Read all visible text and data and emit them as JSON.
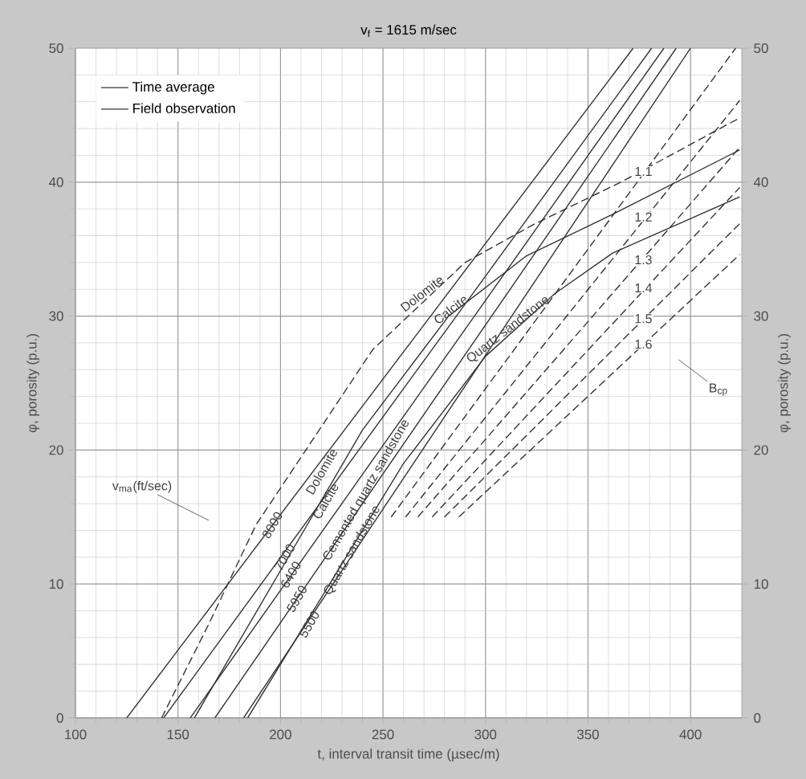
{
  "chart_data": {
    "type": "line",
    "title": "v$_{f}$ = 1615 m/sec",
    "xlabel": "t, interval transit time (µsec/m)",
    "ylabel": "φ, porosity (p.u.)",
    "y2label": "φ, porosity (p.u.)",
    "xlim": [
      100,
      425
    ],
    "ylim": [
      0,
      50
    ],
    "y2lim": [
      0,
      50
    ],
    "xticks": [
      100,
      150,
      200,
      250,
      300,
      350,
      400
    ],
    "yticks": [
      0,
      10,
      20,
      30,
      40,
      50
    ],
    "y2ticks": [
      0,
      10,
      20,
      30,
      40,
      50
    ],
    "grid": true,
    "legend": "top left",
    "marker": "none",
    "series": [
      {
        "name": "Time average",
        "color": "#333333",
        "line_style": "solid",
        "x": [
          125,
          372
        ],
        "values": [
          0,
          50
        ]
      },
      {
        "color": "#333333",
        "line_style": "solid",
        "x": [
          143,
          381
        ],
        "values": [
          0,
          50
        ]
      },
      {
        "color": "#333333",
        "line_style": "solid",
        "x": [
          156,
          387
        ],
        "values": [
          0,
          50
        ]
      },
      {
        "color": "#333333",
        "line_style": "solid",
        "x": [
          168,
          393
        ],
        "values": [
          0,
          50
        ]
      },
      {
        "color": "#333333",
        "line_style": "solid",
        "x": [
          182,
          400
        ],
        "values": [
          0,
          50
        ]
      },
      {
        "color": "#333333",
        "line_style": "dashed",
        "x": [
          142,
          165,
          188,
          245,
          290,
          323,
          366,
          424
        ],
        "values": [
          0,
          7,
          14.4,
          27.5,
          34,
          36.8,
          40,
          44.8
        ]
      },
      {
        "name": "Field observation",
        "color": "#333333",
        "line_style": "solid",
        "x": [
          158,
          200,
          240,
          282,
          320,
          362,
          424
        ],
        "values": [
          0,
          11,
          21.5,
          30,
          34.5,
          37.6,
          42.4
        ]
      },
      {
        "color": "#333333",
        "line_style": "solid",
        "x": [
          184,
          220,
          260,
          300,
          334,
          362,
          424
        ],
        "values": [
          0,
          9,
          19,
          27,
          31.7,
          34.7,
          38.9
        ]
      },
      {
        "color": "#333333",
        "line_style": "dashed",
        "x": [
          254,
          422
        ],
        "values": [
          15,
          50
        ]
      },
      {
        "color": "#333333",
        "line_style": "dashed",
        "x": [
          261,
          424
        ],
        "values": [
          15,
          46.1
        ]
      },
      {
        "color": "#333333",
        "line_style": "dashed",
        "x": [
          267,
          424
        ],
        "values": [
          15,
          42.6
        ]
      },
      {
        "color": "#333333",
        "line_style": "dashed",
        "x": [
          274,
          424
        ],
        "values": [
          15,
          39.6
        ]
      },
      {
        "color": "#333333",
        "line_style": "dashed",
        "x": [
          280,
          424
        ],
        "values": [
          15,
          36.9
        ]
      },
      {
        "color": "#333333",
        "line_style": "dashed",
        "x": [
          287,
          424
        ],
        "values": [
          15,
          34.6
        ]
      }
    ],
    "annotations": [
      "v$_{ma}$(ft/sec)",
      {
        "text": "8000",
        "x": 196,
        "y": 14.4
      },
      {
        "text": "7000",
        "x": 202,
        "y": 12
      },
      {
        "text": "6400",
        "x": 205,
        "y": 10.7
      },
      {
        "text": "5950",
        "x": 208,
        "y": 8.9
      },
      {
        "text": "5500",
        "x": 214,
        "y": 7
      },
      {
        "text": "Dolomite",
        "x": 220,
        "y": 18.4
      },
      {
        "text": "Calcite",
        "x": 222,
        "y": 16.2
      },
      {
        "text": "Cemented quartz sandstone",
        "x": 242,
        "y": 17
      },
      {
        "text": "Quartz sandstone",
        "x": 235,
        "y": 12.5
      },
      {
        "text": "Dolomite",
        "x": 269,
        "y": 31.7
      },
      {
        "text": "Calcite",
        "x": 283,
        "y": 30.5
      },
      {
        "text": "Quartz sandstone",
        "x": 311,
        "y": 29
      },
      {
        "text": "1.1",
        "x": 377,
        "y": 40.8
      },
      {
        "text": "1.2",
        "x": 377,
        "y": 37.4
      },
      {
        "text": "1.3",
        "x": 377,
        "y": 34.2
      },
      {
        "text": "1.4",
        "x": 377,
        "y": 32.1
      },
      {
        "text": "1.5",
        "x": 377,
        "y": 29.8
      },
      {
        "text": "1.6",
        "x": 377,
        "y": 27.9
      },
      "B$_{cp}$"
    ]
  }
}
